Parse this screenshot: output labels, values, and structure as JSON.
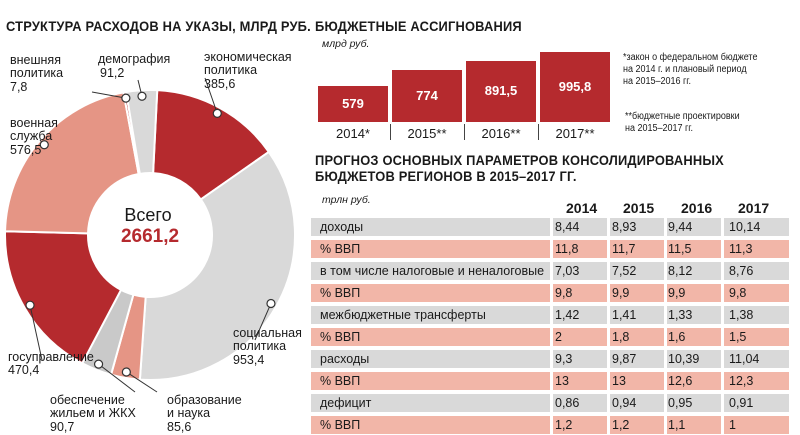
{
  "donut": {
    "title": "СТРУКТУРА РАСХОДОВ НА УКАЗЫ, МЛРД РУБ.",
    "center_label": "Всего",
    "center_value": "2661,2",
    "segments": [
      {
        "label": "экономическая\nполитика",
        "value": "385,6",
        "num": 385.6,
        "color": "#b52a2e"
      },
      {
        "label": "социальная\nполитика",
        "value": "953,4",
        "num": 953.4,
        "color": "#d9d9d9"
      },
      {
        "label": "образование\nи наука",
        "value": "85,6",
        "num": 85.6,
        "color": "#e59585"
      },
      {
        "label": "обеспечение\nжильем и ЖКХ",
        "value": "90,7",
        "num": 90.7,
        "color": "#c9c9c9"
      },
      {
        "label": "госуправление",
        "value": "470,4",
        "num": 470.4,
        "color": "#b52a2e"
      },
      {
        "label": "военная\nслужба",
        "value": "576,5",
        "num": 576.5,
        "color": "#e59585"
      },
      {
        "label": "внешняя\nполитика",
        "value": "7,8",
        "num": 7.8,
        "color": "#b52a2e"
      },
      {
        "label": "демография",
        "value": "91,2",
        "num": 91.2,
        "color": "#d9d9d9"
      }
    ]
  },
  "budget": {
    "title": "БЮДЖЕТНЫЕ АССИГНОВАНИЯ",
    "unit": "млрд руб.",
    "bars": [
      {
        "year": "2014*",
        "value": "579",
        "num": 579
      },
      {
        "year": "2015**",
        "value": "774",
        "num": 774
      },
      {
        "year": "2016**",
        "value": "891,5",
        "num": 891.5
      },
      {
        "year": "2017**",
        "value": "995,8",
        "num": 995.8
      }
    ],
    "note1": "*закон о федеральном бюджете\nна 2014 г. и плановый период\nна 2015–2016 гг.",
    "note2": "**бюджетные проектировки\nна 2015–2017 гг."
  },
  "forecast": {
    "title_line1": "ПРОГНОЗ ОСНОВНЫХ ПАРАМЕТРОВ КОНСОЛИДИРОВАННЫХ",
    "title_line2": "БЮДЖЕТОВ РЕГИОНОВ В 2015–2017 ГГ.",
    "unit": "трлн руб.",
    "columns": [
      "2014",
      "2015",
      "2016",
      "2017"
    ],
    "rows": [
      {
        "label": "доходы",
        "values": [
          "8,44",
          "8,93",
          "9,44",
          "10,14"
        ],
        "style": "gray"
      },
      {
        "label": "% ВВП",
        "values": [
          "11,8",
          "11,7",
          "11,5",
          "11,3"
        ],
        "style": "pink"
      },
      {
        "label": "в том числе налоговые и неналоговые",
        "values": [
          "7,03",
          "7,52",
          "8,12",
          "8,76"
        ],
        "style": "gray"
      },
      {
        "label": "% ВВП",
        "values": [
          "9,8",
          "9,9",
          "9,9",
          "9,8"
        ],
        "style": "pink"
      },
      {
        "label": "межбюджетные трансферты",
        "values": [
          "1,42",
          "1,41",
          "1,33",
          "1,38"
        ],
        "style": "gray"
      },
      {
        "label": "% ВВП",
        "values": [
          "2",
          "1,8",
          "1,6",
          "1,5"
        ],
        "style": "pink"
      },
      {
        "label": "расходы",
        "values": [
          "9,3",
          "9,87",
          "10,39",
          "11,04"
        ],
        "style": "gray"
      },
      {
        "label": "% ВВП",
        "values": [
          "13",
          "13",
          "12,6",
          "12,3"
        ],
        "style": "pink"
      },
      {
        "label": "дефицит",
        "values": [
          "0,86",
          "0,94",
          "0,95",
          "0,91"
        ],
        "style": "gray"
      },
      {
        "label": "% ВВП",
        "values": [
          "1,2",
          "1,2",
          "1,1",
          "1"
        ],
        "style": "pink"
      }
    ]
  },
  "chart_data": [
    {
      "type": "pie",
      "title": "СТРУКТУРА РАСХОДОВ НА УКАЗЫ, МЛРД РУБ.",
      "categories": [
        "экономическая политика",
        "социальная политика",
        "образование и наука",
        "обеспечение жильем и ЖКХ",
        "госуправление",
        "военная служба",
        "внешняя политика",
        "демография"
      ],
      "values": [
        385.6,
        953.4,
        85.6,
        90.7,
        470.4,
        576.5,
        7.8,
        91.2
      ]
    },
    {
      "type": "bar",
      "title": "БЮДЖЕТНЫЕ АССИГНОВАНИЯ",
      "ylabel": "млрд руб.",
      "categories": [
        "2014*",
        "2015**",
        "2016**",
        "2017**"
      ],
      "values": [
        579,
        774,
        891.5,
        995.8
      ]
    },
    {
      "type": "table",
      "title": "ПРОГНОЗ ОСНОВНЫХ ПАРАМЕТРОВ КОНСОЛИДИРОВАННЫХ БЮДЖЕТОВ РЕГИОНОВ В 2015–2017 ГГ.",
      "columns": [
        "",
        "2014",
        "2015",
        "2016",
        "2017"
      ]
    }
  ]
}
